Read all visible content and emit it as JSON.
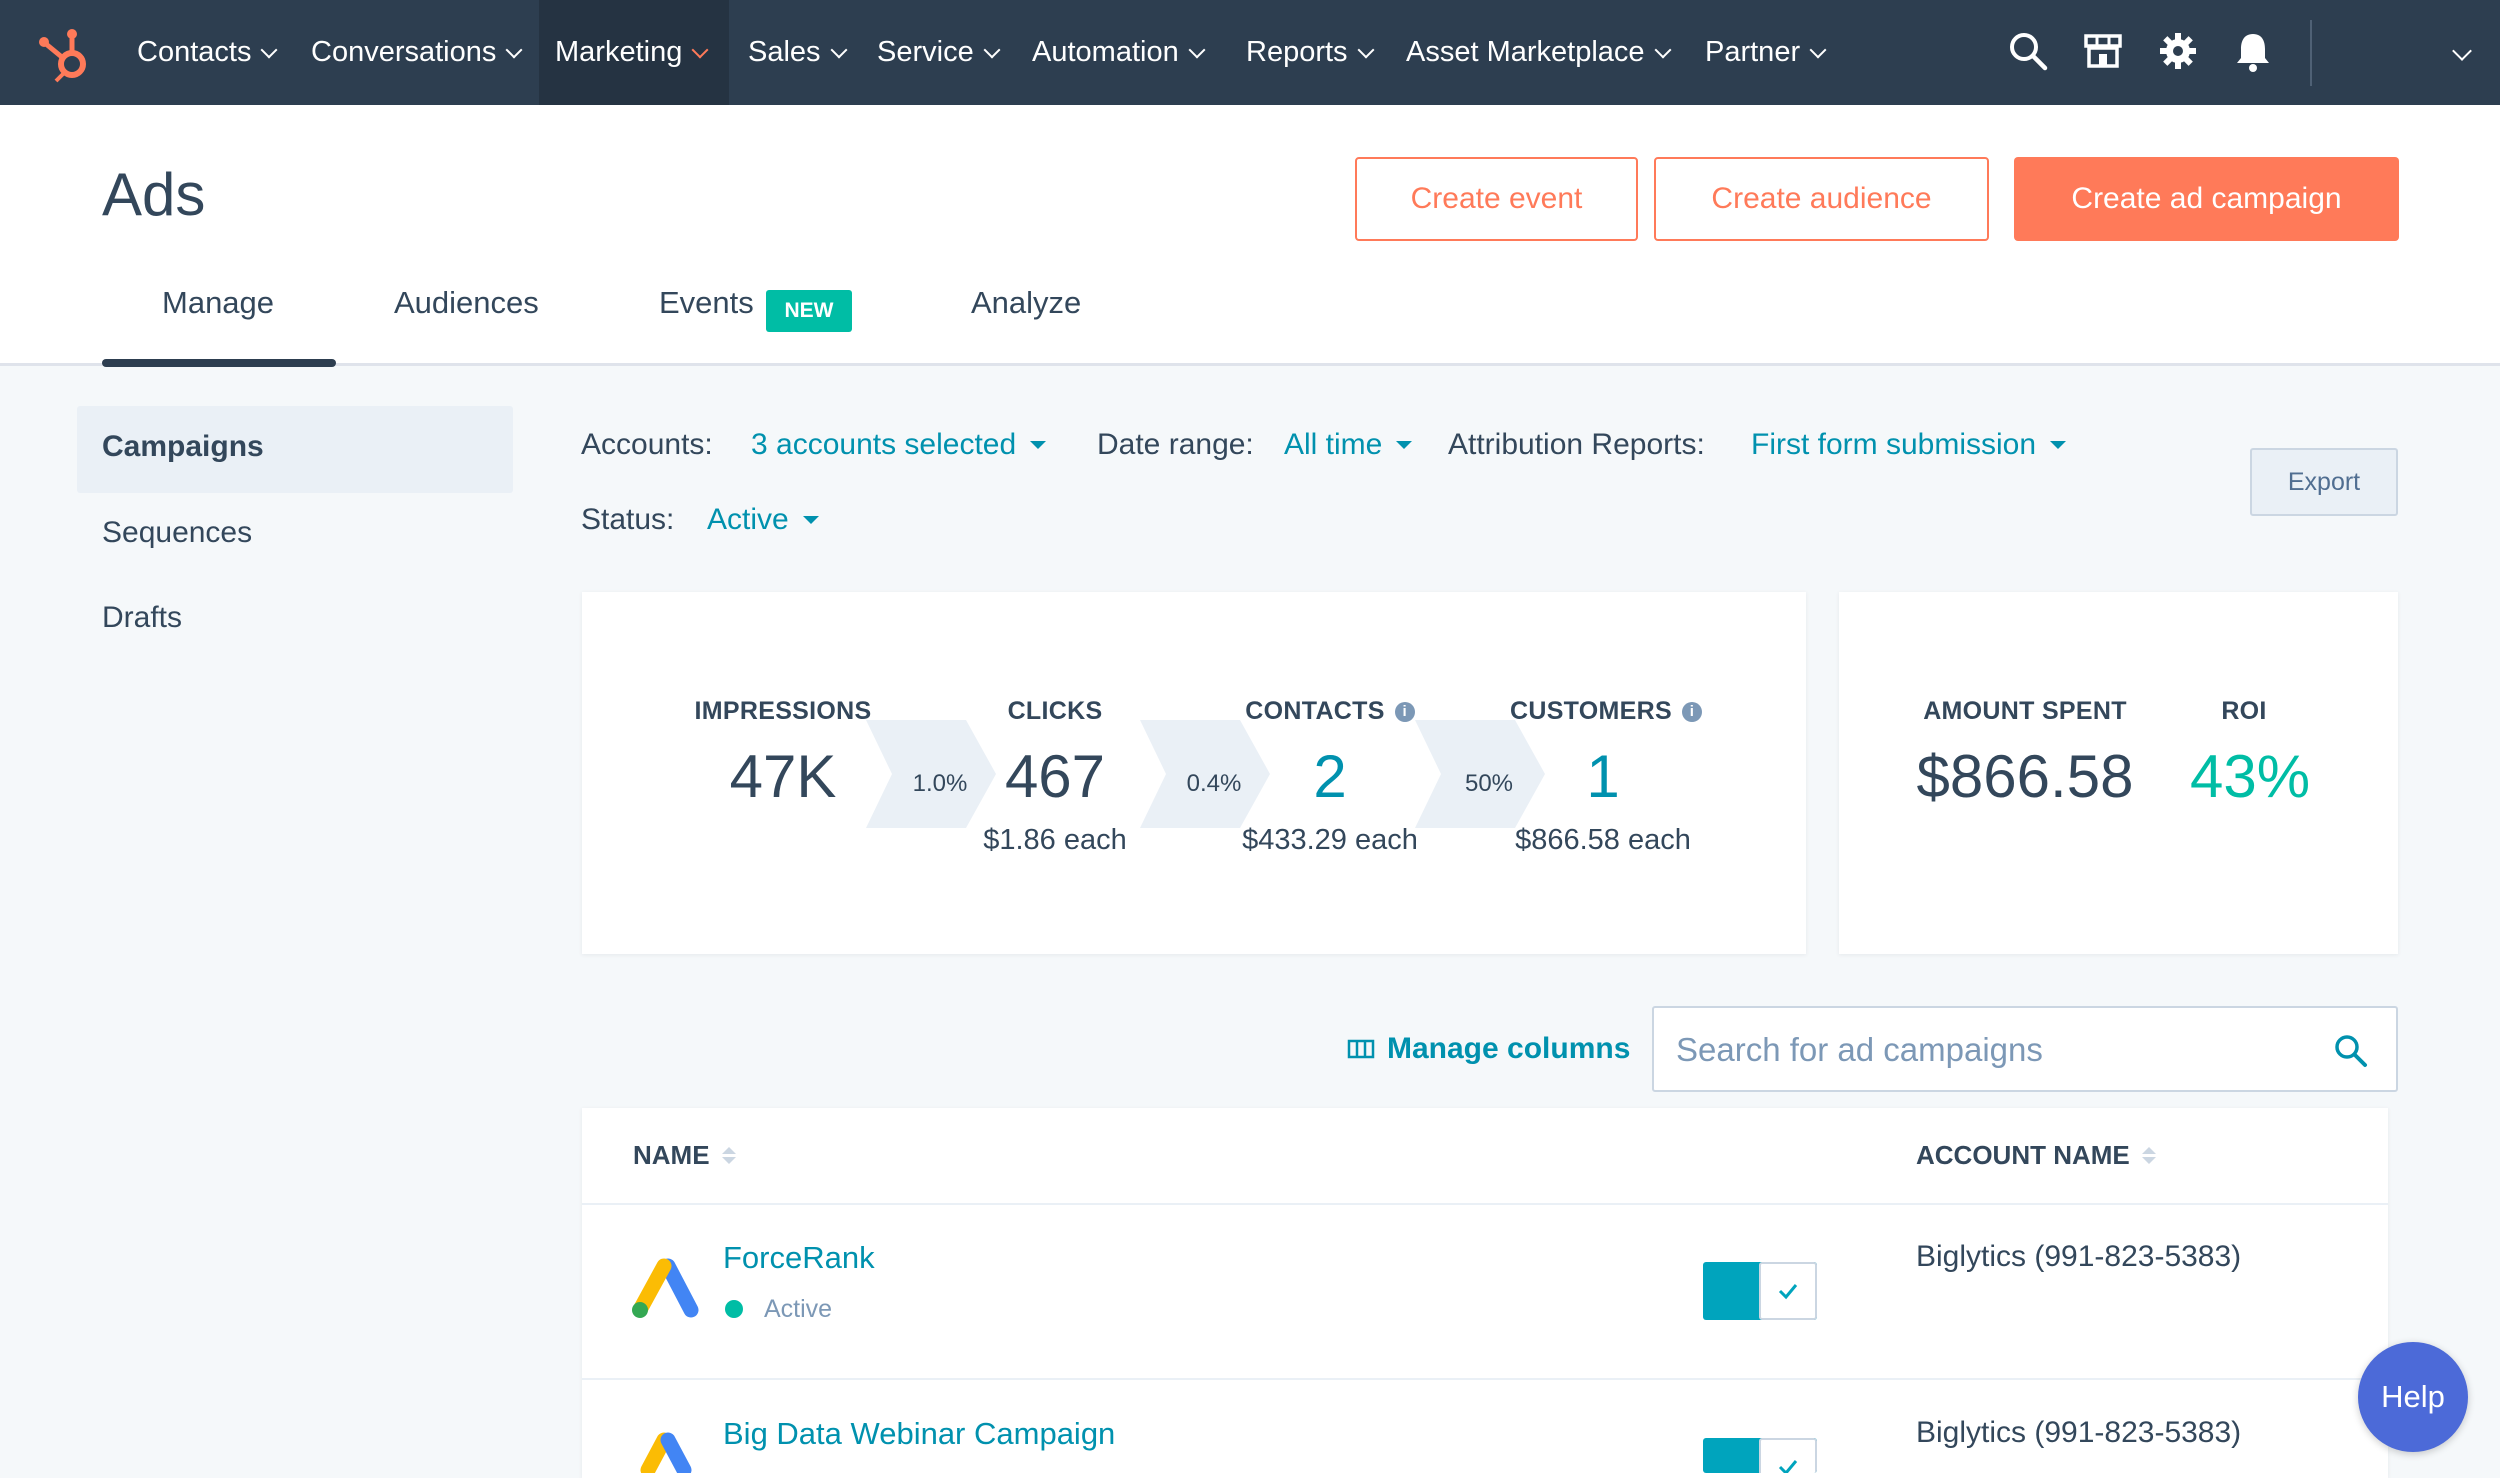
{
  "nav": {
    "items": [
      {
        "label": "Contacts"
      },
      {
        "label": "Conversations"
      },
      {
        "label": "Marketing"
      },
      {
        "label": "Sales"
      },
      {
        "label": "Service"
      },
      {
        "label": "Automation"
      },
      {
        "label": "Reports"
      },
      {
        "label": "Asset Marketplace"
      },
      {
        "label": "Partner"
      }
    ],
    "active": "Marketing",
    "icons": [
      "search-icon",
      "marketplace-icon",
      "gear-icon",
      "bell-icon",
      "chevron-down-icon"
    ]
  },
  "page": {
    "title": "Ads",
    "actions": {
      "create_event": "Create event",
      "create_audience": "Create audience",
      "create_campaign": "Create ad campaign"
    },
    "tabs": [
      {
        "label": "Manage"
      },
      {
        "label": "Audiences"
      },
      {
        "label": "Events",
        "badge": "NEW"
      },
      {
        "label": "Analyze"
      }
    ],
    "active_tab": "Manage"
  },
  "sidebar": {
    "items": [
      {
        "label": "Campaigns"
      },
      {
        "label": "Sequences"
      },
      {
        "label": "Drafts"
      }
    ],
    "active": "Campaigns"
  },
  "filters": {
    "accounts_label": "Accounts:",
    "accounts_value": "3 accounts selected",
    "date_label": "Date range:",
    "date_value": "All time",
    "attribution_label": "Attribution Reports:",
    "attribution_value": "First form submission",
    "status_label": "Status:",
    "status_value": "Active",
    "export": "Export"
  },
  "metrics": {
    "impressions": {
      "label": "IMPRESSIONS",
      "value": "47K"
    },
    "rate1": "1.0%",
    "clicks": {
      "label": "CLICKS",
      "value": "467",
      "sub": "$1.86 each"
    },
    "rate2": "0.4%",
    "contacts": {
      "label": "CONTACTS",
      "value": "2",
      "sub": "$433.29 each"
    },
    "rate3": "50%",
    "customers": {
      "label": "CUSTOMERS",
      "value": "1",
      "sub": "$866.58 each"
    },
    "amount_spent": {
      "label": "AMOUNT SPENT",
      "value": "$866.58"
    },
    "roi": {
      "label": "ROI",
      "value": "43%"
    }
  },
  "table": {
    "manage_columns": "Manage columns",
    "search_placeholder": "Search for ad campaigns",
    "columns": {
      "name": "NAME",
      "account": "ACCOUNT NAME"
    },
    "rows": [
      {
        "name": "ForceRank",
        "status": "Active",
        "account": "Biglytics (991-823-5383)",
        "enabled": true
      },
      {
        "name": "Big Data Webinar Campaign",
        "account": "Biglytics (991-823-5383)",
        "enabled": true
      }
    ]
  },
  "help": "Help",
  "colors": {
    "nav_bg": "#2d3e50",
    "accent": "#ff7a59",
    "link": "#0091ae",
    "success": "#00bda5"
  }
}
